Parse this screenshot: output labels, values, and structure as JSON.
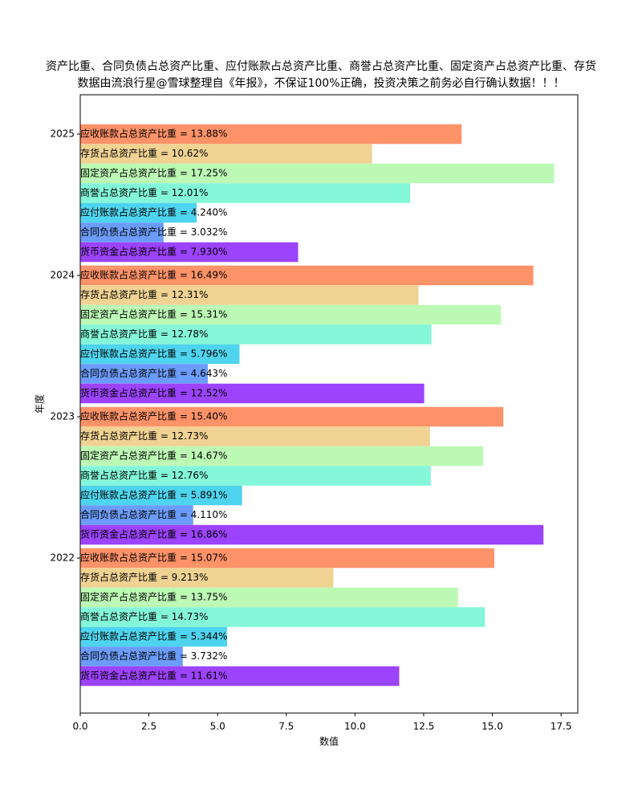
{
  "chart_data": {
    "type": "barh",
    "title": "资产比重、合同负债占总资产比重、应付账款占总资产比重、商誉占总资产比重、固定资产占总资产比重、存货",
    "subtitle": "数据由流浪行星@雪球整理自《年报》，不保证100%正确，投资决策之前务必自行确认数据！！！",
    "x_label": "数值",
    "y_label": "年度",
    "categories": [
      "2025",
      "2024",
      "2023",
      "2022"
    ],
    "series": [
      {
        "color": "#fe9268",
        "values": [
          13.88,
          16.49,
          15.4,
          15.07
        ],
        "value_labels": [
          "应收账款占总资产比重 = 13.88%",
          "应收账款占总资产比重 = 16.49%",
          "应收账款占总资产比重 = 15.40%",
          "应收账款占总资产比重 = 15.07%"
        ]
      },
      {
        "color": "#f0d293",
        "values": [
          10.62,
          12.31,
          12.73,
          9.213
        ],
        "value_labels": [
          "存货占总资产比重 = 10.62%",
          "存货占总资产比重 = 12.31%",
          "存货占总资产比重 = 12.73%",
          "存货占总资产比重 = 9.213%"
        ]
      },
      {
        "color": "#bcf9b5",
        "values": [
          17.25,
          15.31,
          14.67,
          13.75
        ],
        "value_labels": [
          "固定资产占总资产比重 = 17.25%",
          "固定资产占总资产比重 = 15.31%",
          "固定资产占总资产比重 = 14.67%",
          "固定资产占总资产比重 = 13.75%"
        ]
      },
      {
        "color": "#84f7d8",
        "values": [
          12.01,
          12.78,
          12.76,
          14.73
        ],
        "value_labels": [
          "商誉占总资产比重 = 12.01%",
          "商誉占总资产比重 = 12.78%",
          "商誉占总资产比重 = 12.76%",
          "商誉占总资产比重 = 14.73%"
        ]
      },
      {
        "color": "#4ed4ee",
        "values": [
          4.24,
          5.796,
          5.891,
          5.344
        ],
        "value_labels": [
          "应付账款占总资产比重 = 4.240%",
          "应付账款占总资产比重 = 5.796%",
          "应付账款占总资产比重 = 5.891%",
          "应付账款占总资产比重 = 5.344%"
        ]
      },
      {
        "color": "#6b9cf9",
        "values": [
          3.032,
          4.643,
          4.11,
          3.732
        ],
        "value_labels": [
          "合同负债占总资产比重 = 3.032%",
          "合同负债占总资产比重 = 4.643%",
          "合同负债占总资产比重 = 4.110%",
          "合同负债占总资产比重 = 3.732%"
        ]
      },
      {
        "color": "#9c43fc",
        "values": [
          7.93,
          12.52,
          16.86,
          11.61
        ],
        "value_labels": [
          "货币资金占总资产比重 = 7.930%",
          "货币资金占总资产比重 = 12.52%",
          "货币资金占总资产比重 = 16.86%",
          "货币资金占总资产比重 = 11.61%"
        ]
      }
    ],
    "xlim": [
      0,
      18.11
    ],
    "xticks": [
      {
        "value": 0,
        "label": "0.0"
      },
      2.5,
      {
        "value": 5,
        "label": "5.0"
      },
      7.5,
      {
        "value": 10,
        "label": "10.0"
      },
      12.5,
      {
        "value": 15,
        "label": "15.0"
      },
      17.5
    ]
  }
}
